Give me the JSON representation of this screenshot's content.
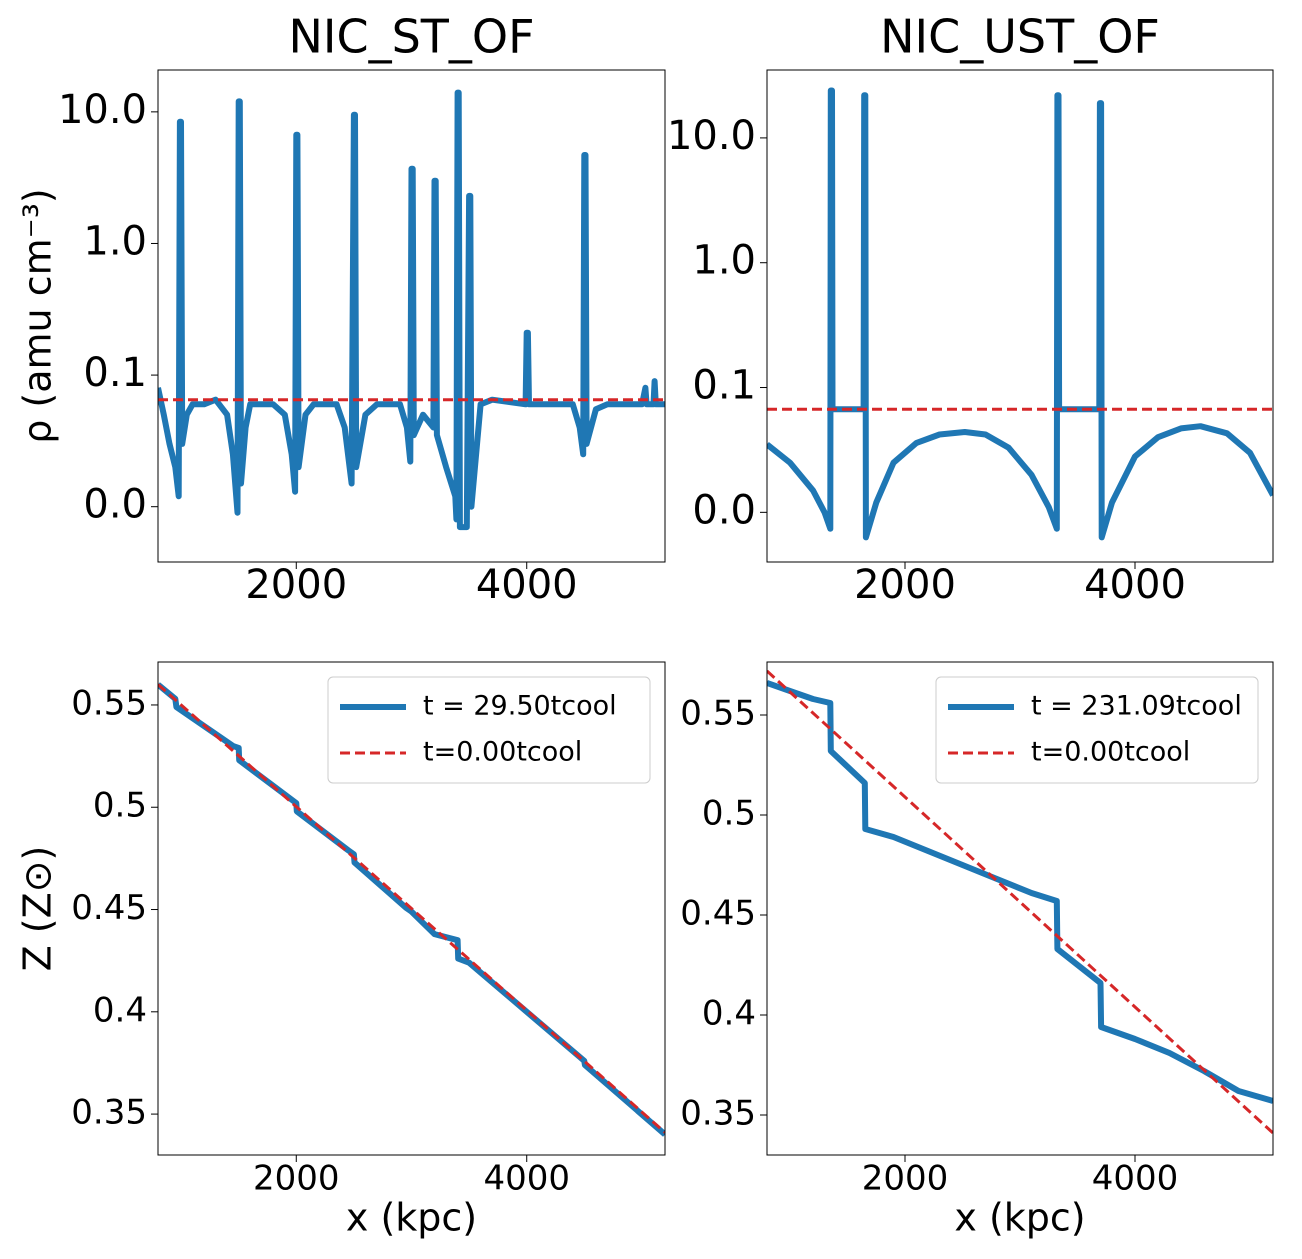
{
  "chart_data": [
    {
      "type": "line",
      "title": "NIC_ST_OF",
      "ylabel": "ρ (amu cm⁻³)",
      "yscale": "log",
      "xlim": [
        800,
        5200
      ],
      "xticks": [
        2000,
        4000
      ],
      "ylim": [
        0.0038,
        20.8
      ],
      "yticks": [
        {
          "value": 10,
          "label": "10.0"
        },
        {
          "value": 1,
          "label": "1.0"
        },
        0.1,
        {
          "value": 0.01,
          "label": "0.0"
        }
      ],
      "series": [
        {
          "color": "#1f77b4",
          "dash": false,
          "x": [
            800,
            850,
            900,
            950,
            980,
            990,
            1000,
            1010,
            1050,
            1100,
            1200,
            1300,
            1400,
            1450,
            1490,
            1500,
            1510,
            1520,
            1560,
            1600,
            1800,
            1900,
            1960,
            1990,
            2000,
            2010,
            2020,
            2080,
            2150,
            2350,
            2420,
            2480,
            2500,
            2510,
            2520,
            2600,
            2700,
            2900,
            2960,
            2990,
            3000,
            3010,
            3020,
            3100,
            3190,
            3200,
            3210,
            3220,
            3300,
            3380,
            3390,
            3400,
            3410,
            3420,
            3480,
            3500,
            3510,
            3520,
            3600,
            3700,
            3990,
            4000,
            4010,
            4020,
            4400,
            4460,
            4490,
            4500,
            4510,
            4520,
            4600,
            4700,
            5000,
            5030,
            5040,
            5100,
            5110,
            5120,
            5200
          ],
          "values": [
            0.08,
            0.05,
            0.03,
            0.02,
            0.012,
            8.4,
            8.4,
            0.03,
            0.05,
            0.06,
            0.06,
            0.065,
            0.05,
            0.025,
            0.009,
            12,
            12,
            0.015,
            0.04,
            0.06,
            0.06,
            0.05,
            0.025,
            0.013,
            6.7,
            6.7,
            0.02,
            0.05,
            0.06,
            0.06,
            0.04,
            0.015,
            9.5,
            9.5,
            0.02,
            0.05,
            0.06,
            0.06,
            0.04,
            0.022,
            3.7,
            3.7,
            0.035,
            0.05,
            0.04,
            3,
            3,
            0.035,
            0.02,
            0.012,
            0.008,
            14,
            14,
            0.007,
            0.007,
            2.3,
            2.3,
            0.01,
            0.06,
            0.065,
            0.06,
            0.21,
            0.21,
            0.06,
            0.06,
            0.04,
            0.025,
            4.7,
            4.7,
            0.03,
            0.055,
            0.06,
            0.06,
            0.08,
            0.06,
            0.06,
            0.09,
            0.06,
            0.06
          ]
        },
        {
          "color": "#d62728",
          "dash": true,
          "x": [
            800,
            5200
          ],
          "values": [
            0.065,
            0.065
          ]
        }
      ]
    },
    {
      "type": "line",
      "title": "NIC_UST_OF",
      "yscale": "log",
      "xlim": [
        800,
        5200
      ],
      "xticks": [
        2000,
        4000
      ],
      "ylim": [
        0.004,
        35
      ],
      "yticks": [
        {
          "value": 10,
          "label": "10.0"
        },
        {
          "value": 1,
          "label": "1.0"
        },
        0.1,
        {
          "value": 0.01,
          "label": "0.0"
        }
      ],
      "series": [
        {
          "color": "#1f77b4",
          "dash": false,
          "x": [
            800,
            1000,
            1200,
            1300,
            1350,
            1355,
            1365,
            1370,
            1640,
            1645,
            1655,
            1660,
            1750,
            1900,
            2100,
            2300,
            2520,
            2700,
            2900,
            3100,
            3250,
            3320,
            3325,
            3335,
            3340,
            3690,
            3695,
            3705,
            3710,
            3800,
            4000,
            4200,
            4400,
            4570,
            4800,
            5000,
            5200
          ],
          "values": [
            0.035,
            0.025,
            0.015,
            0.01,
            0.0074,
            24,
            24,
            0.067,
            0.067,
            22,
            22,
            0.0063,
            0.012,
            0.025,
            0.036,
            0.042,
            0.044,
            0.042,
            0.033,
            0.02,
            0.011,
            0.0074,
            22,
            22,
            0.067,
            0.067,
            19,
            19,
            0.0063,
            0.012,
            0.028,
            0.04,
            0.047,
            0.049,
            0.043,
            0.03,
            0.0137
          ]
        },
        {
          "color": "#d62728",
          "dash": true,
          "x": [
            800,
            5200
          ],
          "values": [
            0.067,
            0.067
          ]
        }
      ]
    },
    {
      "type": "line",
      "ylabel": "Z (Z⊙)",
      "xlabel": "x (kpc)",
      "legend": "upper right",
      "xlim": [
        800,
        5200
      ],
      "xticks": [
        2000,
        4000
      ],
      "ylim": [
        0.33,
        0.571
      ],
      "yticks": [
        0.35,
        0.4,
        0.45,
        0.5,
        0.55
      ],
      "series": [
        {
          "name": "t = 29.50tcool",
          "color": "#1f77b4",
          "dash": false,
          "x": [
            800,
            950,
            960,
            1450,
            1500,
            1505,
            2000,
            2005,
            2450,
            2500,
            2505,
            2950,
            3000,
            3200,
            3400,
            3405,
            3500,
            4500,
            4505,
            5200
          ],
          "values": [
            0.56,
            0.553,
            0.549,
            0.53,
            0.529,
            0.523,
            0.502,
            0.498,
            0.479,
            0.477,
            0.473,
            0.451,
            0.449,
            0.438,
            0.435,
            0.426,
            0.424,
            0.376,
            0.374,
            0.34
          ]
        },
        {
          "name": "t=0.00tcool",
          "color": "#d62728",
          "dash": true,
          "x": [
            800,
            5200
          ],
          "values": [
            0.56,
            0.341
          ]
        }
      ]
    },
    {
      "type": "line",
      "xlabel": "x (kpc)",
      "legend": "upper right",
      "xlim": [
        800,
        5200
      ],
      "xticks": [
        2000,
        4000
      ],
      "ylim": [
        0.33,
        0.5765
      ],
      "yticks": [
        0.35,
        0.4,
        0.45,
        0.5,
        0.55
      ],
      "series": [
        {
          "name": "t = 231.09tcool",
          "color": "#1f77b4",
          "dash": false,
          "x": [
            800,
            1000,
            1200,
            1350,
            1355,
            1650,
            1655,
            1900,
            2200,
            2500,
            2800,
            3100,
            3320,
            3325,
            3700,
            3705,
            4000,
            4300,
            4600,
            4900,
            5200
          ],
          "values": [
            0.566,
            0.562,
            0.558,
            0.556,
            0.532,
            0.516,
            0.493,
            0.489,
            0.482,
            0.475,
            0.468,
            0.461,
            0.457,
            0.433,
            0.416,
            0.394,
            0.388,
            0.381,
            0.372,
            0.362,
            0.357
          ]
        },
        {
          "name": "t=0.00tcool",
          "color": "#d62728",
          "dash": true,
          "x": [
            800,
            5200
          ],
          "values": [
            0.572,
            0.341
          ]
        }
      ]
    }
  ]
}
